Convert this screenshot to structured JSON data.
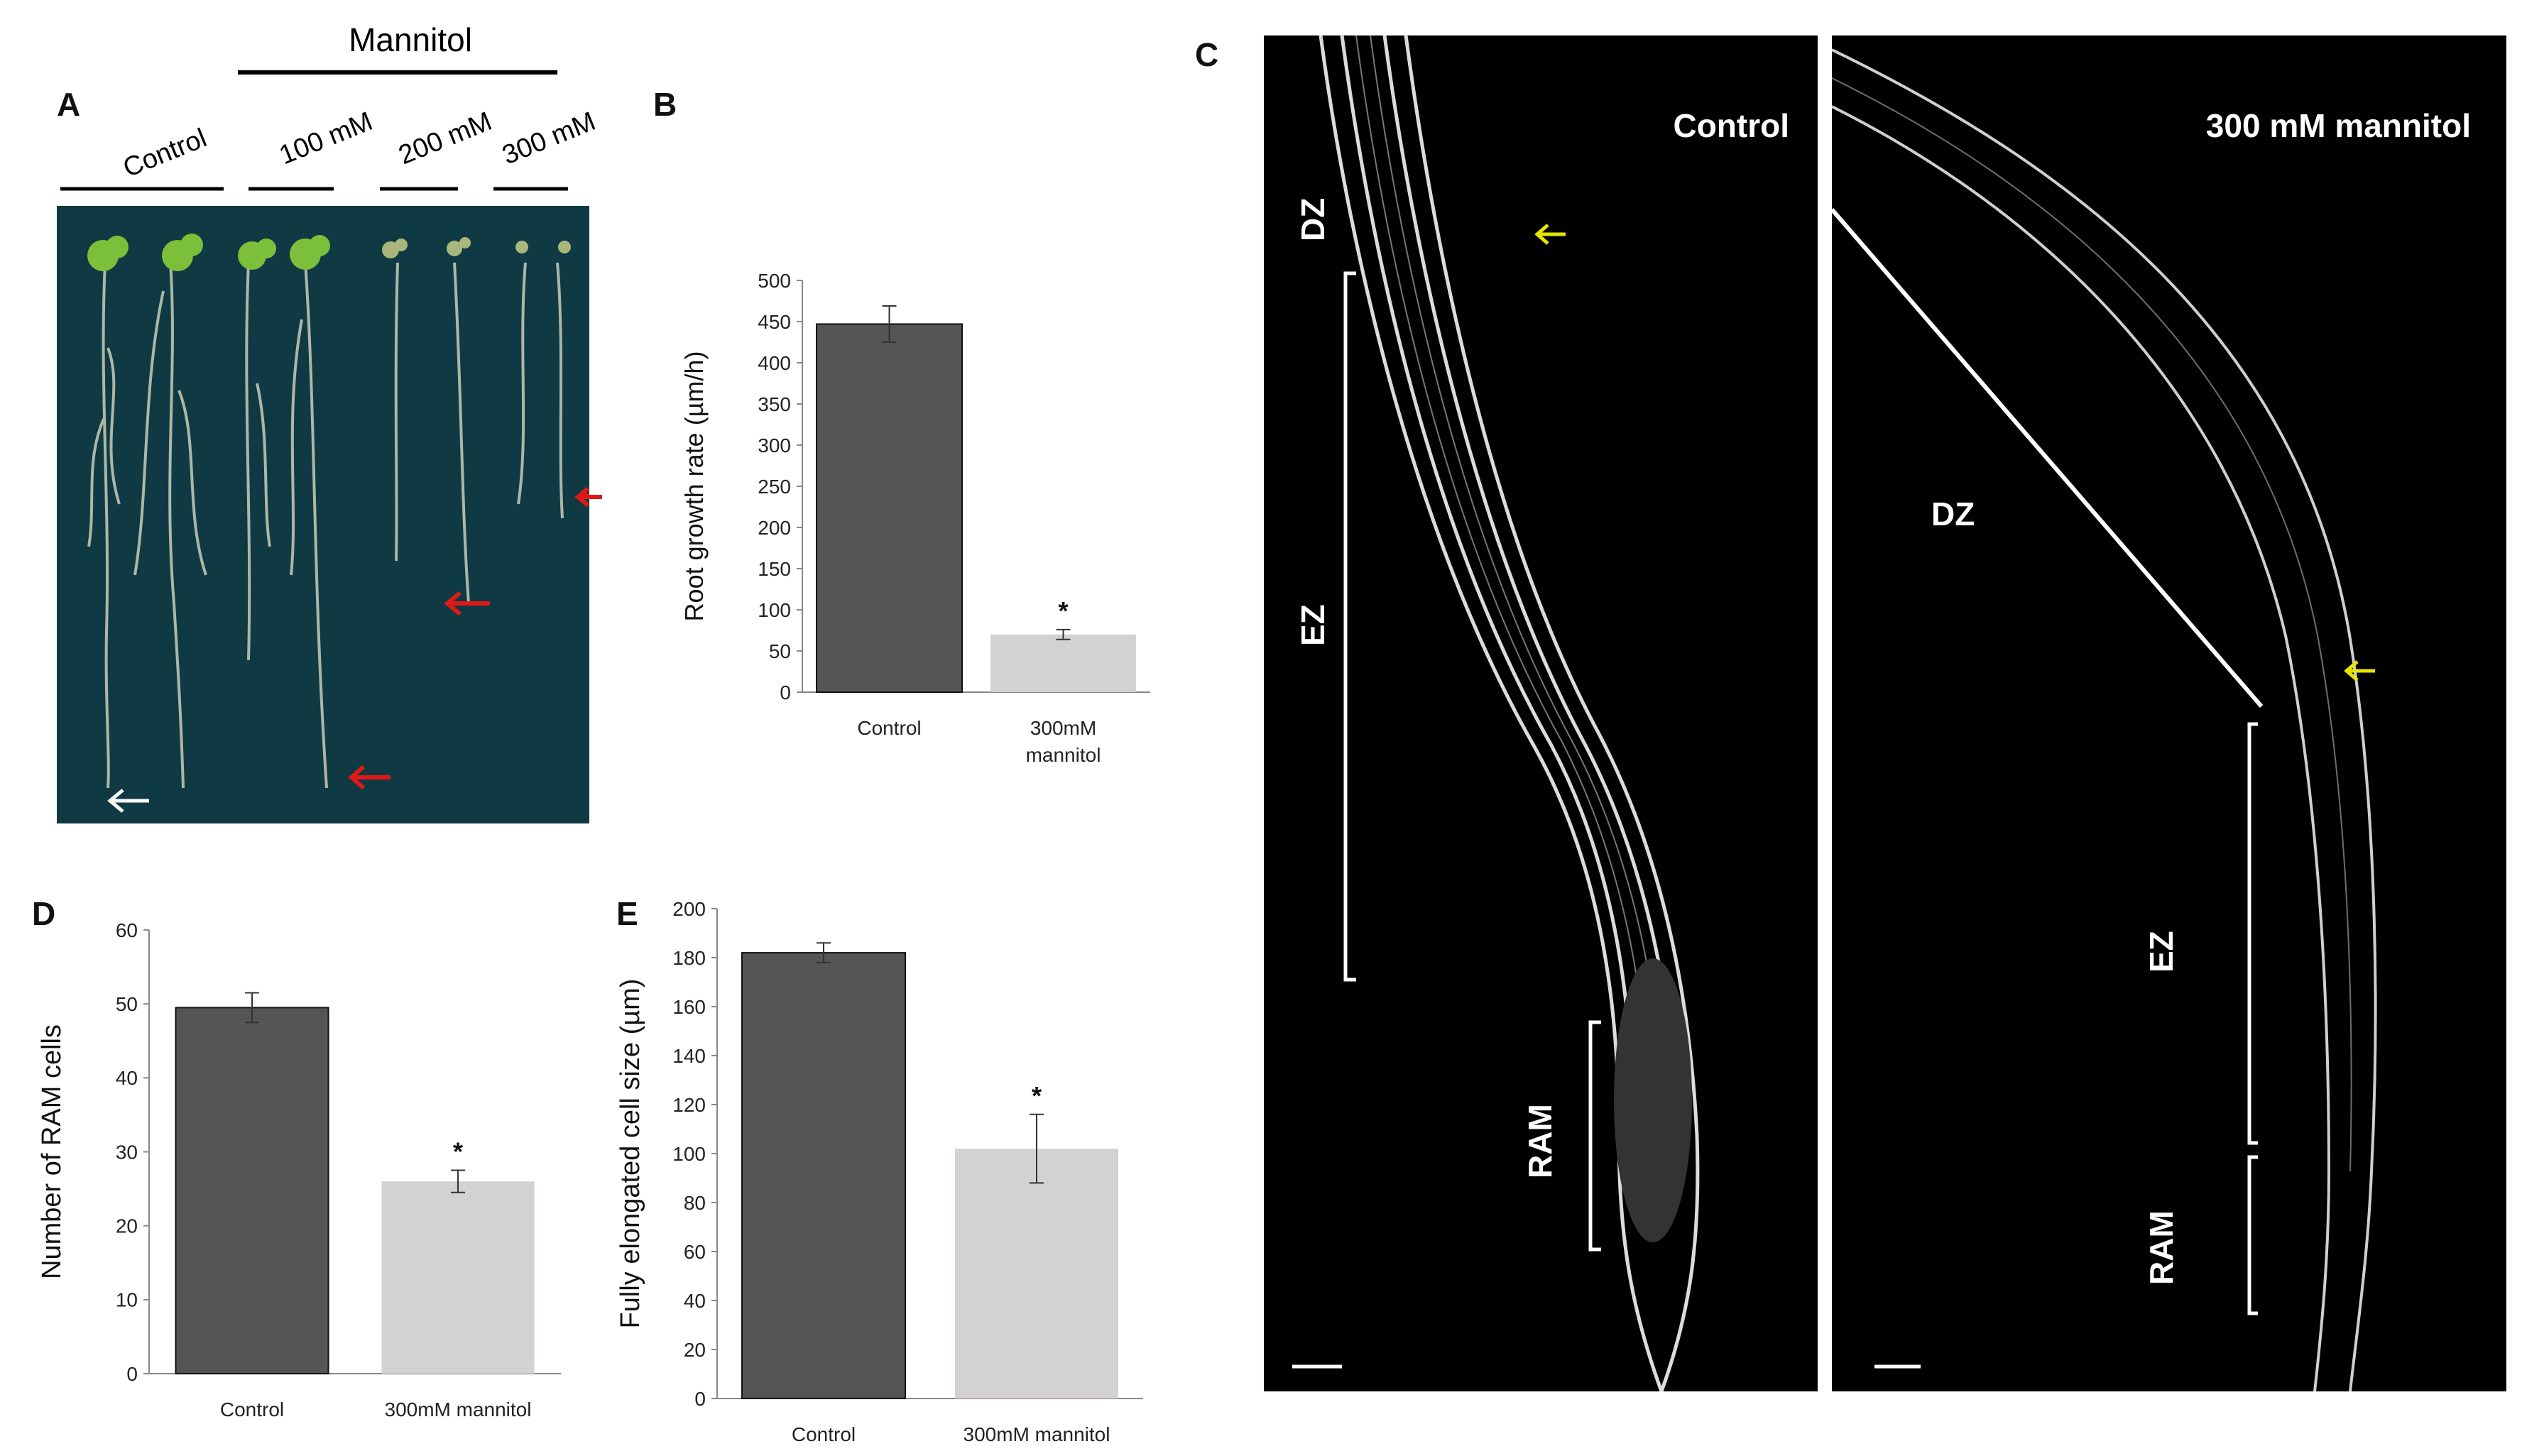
{
  "panels": {
    "A": {
      "letter": "A",
      "group_label": "Mannitol",
      "conditions": [
        "Control",
        "100 mM",
        "200 mM",
        "300 mM"
      ]
    },
    "B": {
      "letter": "B"
    },
    "C": {
      "letter": "C",
      "left": {
        "title": "Control",
        "zones": [
          "DZ",
          "EZ",
          "RAM"
        ]
      },
      "right": {
        "title": "300 mM mannitol",
        "zones": [
          "DZ",
          "EZ",
          "RAM"
        ]
      }
    },
    "D": {
      "letter": "D"
    },
    "E": {
      "letter": "E"
    }
  },
  "colors": {
    "control_bar": "#555555",
    "mannitol_bar": "#d3d1d2",
    "plate_bg": "#0f3a44",
    "arrow_red": "#e01818",
    "arrow_yellow": "#e6e600"
  },
  "chart_data": [
    {
      "id": "B",
      "type": "bar",
      "categories": [
        "Control",
        "300mM mannitol"
      ],
      "values": [
        447,
        70
      ],
      "errors": [
        22,
        6
      ],
      "significance": [
        "",
        "*"
      ],
      "ylabel": "Root growth rate (µm/h)",
      "ylim": [
        0,
        500
      ],
      "yticks": [
        0,
        50,
        100,
        150,
        200,
        250,
        300,
        350,
        400,
        450,
        500
      ]
    },
    {
      "id": "D",
      "type": "bar",
      "categories": [
        "Control",
        "300mM mannitol"
      ],
      "values": [
        49.5,
        26
      ],
      "errors": [
        2,
        1.5
      ],
      "significance": [
        "",
        "*"
      ],
      "ylabel": "Number of RAM cells",
      "ylim": [
        0,
        60
      ],
      "yticks": [
        0,
        10,
        20,
        30,
        40,
        50,
        60
      ]
    },
    {
      "id": "E",
      "type": "bar",
      "categories": [
        "Control",
        "300mM mannitol"
      ],
      "values": [
        182,
        102
      ],
      "errors": [
        4,
        14
      ],
      "significance": [
        "",
        "*"
      ],
      "ylabel": "Fully elongated cell size (µm)",
      "ylim": [
        0,
        200
      ],
      "yticks": [
        0,
        20,
        40,
        60,
        80,
        100,
        120,
        140,
        160,
        180,
        200
      ]
    }
  ]
}
